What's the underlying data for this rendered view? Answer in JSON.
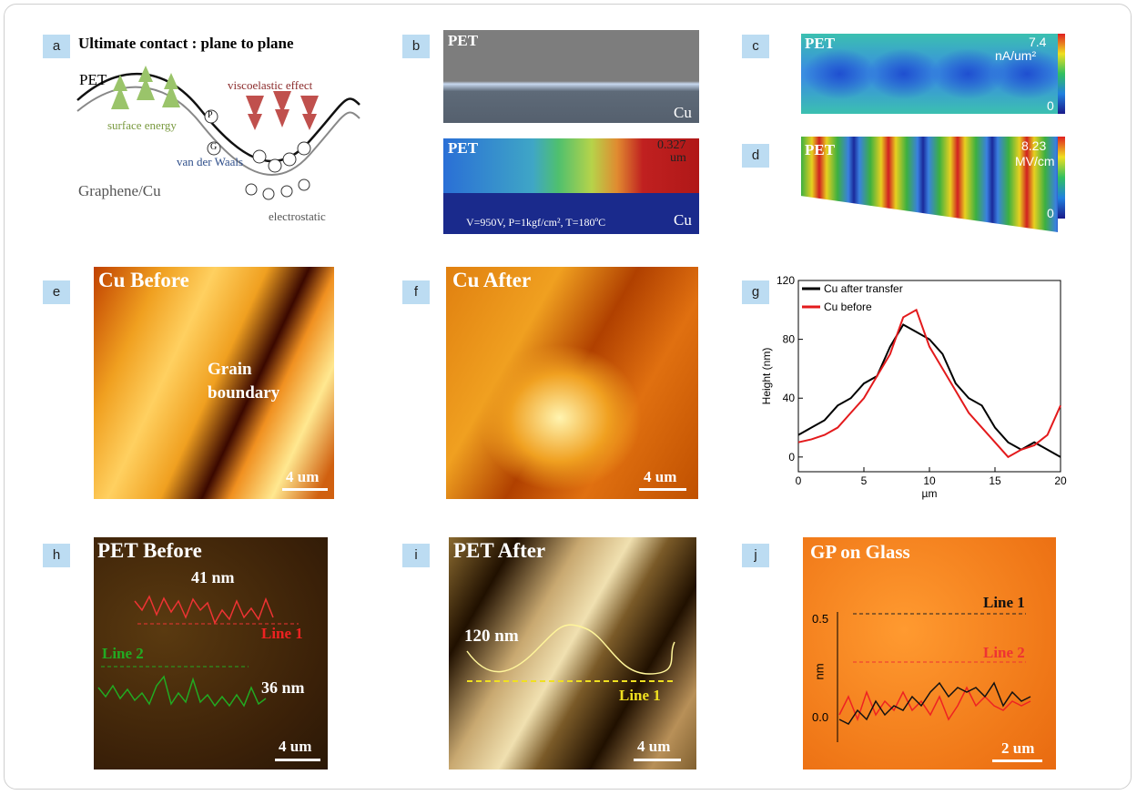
{
  "panels": {
    "a": {
      "label": "a",
      "title": "Ultimate contact : plane to plane",
      "top": "PET",
      "surface": "surface energy",
      "visco": "viscoelastic effect",
      "vdw": "van der Waals",
      "bottom": "Graphene/Cu",
      "electro": "electrostatic",
      "p": "P",
      "g": "G"
    },
    "b": {
      "label": "b",
      "top_pet": "PET",
      "top_cu": "Cu",
      "bot_pet": "PET",
      "bot_value": "0.327",
      "bot_unit": "um",
      "bot_cu": "Cu",
      "conditions": "V=950V, P=1kgf/cm², T=180ºC"
    },
    "c": {
      "label": "c",
      "pet": "PET",
      "max": "7.4",
      "unit": "nA/um²",
      "min": "0"
    },
    "d": {
      "label": "d",
      "pet": "PET",
      "max": "8.23",
      "unit": "MV/cm",
      "min": "0"
    },
    "e": {
      "label": "e",
      "title": "Cu Before",
      "annotation": "Grain boundary",
      "scale": "4 um"
    },
    "f": {
      "label": "f",
      "title": "Cu After",
      "scale": "4 um"
    },
    "h": {
      "label": "h",
      "title": "PET Before",
      "peak1": "41 nm",
      "line1": "Line 1",
      "line2": "Line 2",
      "peak2": "36 nm",
      "scale": "4 um"
    },
    "i": {
      "label": "i",
      "title": "PET After",
      "peak": "120 nm",
      "line1": "Line 1",
      "scale": "4 um"
    },
    "j": {
      "label": "j",
      "title": "GP on Glass",
      "line1": "Line 1",
      "line2": "Line 2",
      "ylabel": "nm",
      "ytick_top": "0.5",
      "ytick_bottom": "0.0",
      "scale": "2 um"
    }
  },
  "chart_data": {
    "type": "line",
    "label": "g",
    "xlabel": "µm",
    "ylabel": "Height (nm)",
    "x": [
      0,
      1,
      2,
      3,
      4,
      5,
      6,
      7,
      8,
      9,
      10,
      11,
      12,
      13,
      14,
      15,
      16,
      17,
      18,
      19,
      20
    ],
    "xlim": [
      0,
      20
    ],
    "ylim": [
      -10,
      120
    ],
    "xticks": [
      0,
      5,
      10,
      15,
      20
    ],
    "yticks": [
      0,
      40,
      80,
      120
    ],
    "series": [
      {
        "name": "Cu after transfer",
        "color": "#000000",
        "values": [
          15,
          20,
          25,
          35,
          40,
          50,
          55,
          75,
          90,
          85,
          80,
          70,
          50,
          40,
          35,
          20,
          10,
          5,
          10,
          5,
          0
        ]
      },
      {
        "name": "Cu before",
        "color": "#e31a1c",
        "values": [
          10,
          12,
          15,
          20,
          30,
          40,
          55,
          70,
          95,
          100,
          75,
          60,
          45,
          30,
          20,
          10,
          0,
          5,
          8,
          15,
          35
        ]
      }
    ]
  }
}
